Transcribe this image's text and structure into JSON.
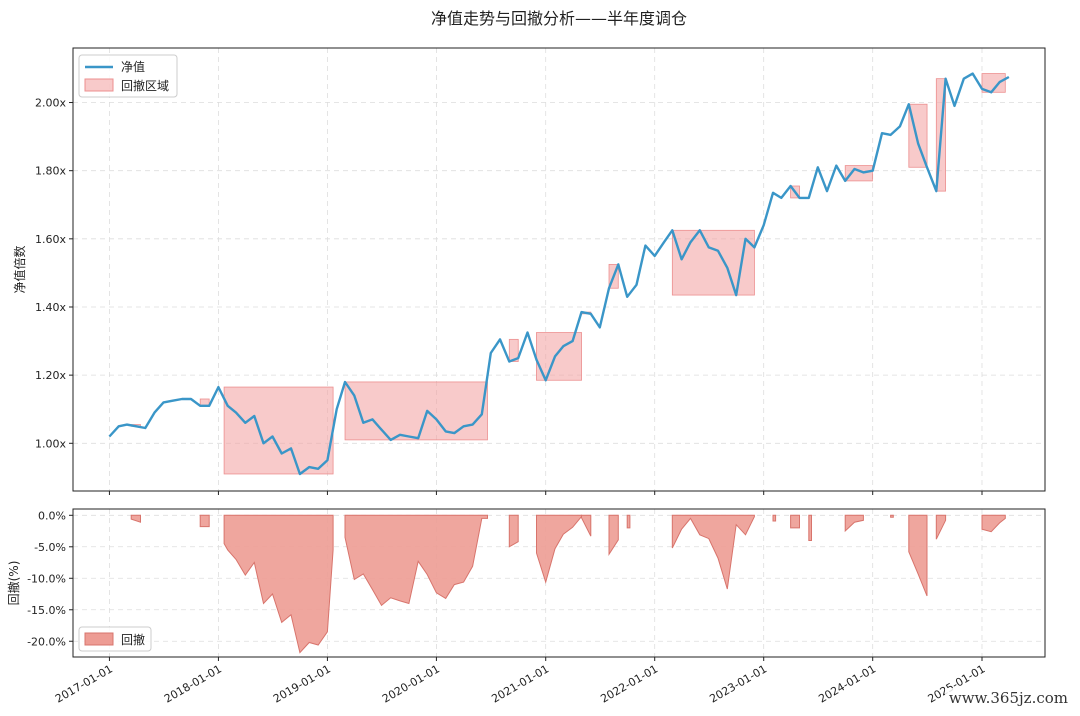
{
  "chart_data": [
    {
      "type": "line",
      "title": "净值走势与回撤分析——半年度调仓",
      "ylabel": "净值倍数",
      "ylim": [
        0.86,
        2.16
      ],
      "yticks": [
        1.0,
        1.2,
        1.4,
        1.6,
        1.8,
        2.0
      ],
      "ytick_labels": [
        "1.00x",
        "1.20x",
        "1.40x",
        "1.60x",
        "1.80x",
        "2.00x"
      ],
      "xlim": [
        "2016-09-01",
        "2025-07-31"
      ],
      "grid": true,
      "legend": {
        "position": "top-left",
        "entries": [
          "净值",
          "回撤区域"
        ]
      },
      "colors": {
        "nav": "#3a96c8",
        "drawdown_fill": "#f4a6a6"
      },
      "series": [
        {
          "name": "净值",
          "x": [
            "2017-01-01",
            "2017-02-01",
            "2017-03-01",
            "2017-04-01",
            "2017-05-01",
            "2017-06-01",
            "2017-07-01",
            "2017-08-01",
            "2017-09-01",
            "2017-10-01",
            "2017-11-01",
            "2017-12-01",
            "2018-01-01",
            "2018-02-01",
            "2018-03-01",
            "2018-04-01",
            "2018-05-01",
            "2018-06-01",
            "2018-07-01",
            "2018-08-01",
            "2018-09-01",
            "2018-10-01",
            "2018-11-01",
            "2018-12-01",
            "2019-01-01",
            "2019-02-01",
            "2019-03-01",
            "2019-04-01",
            "2019-05-01",
            "2019-06-01",
            "2019-07-01",
            "2019-08-01",
            "2019-09-01",
            "2019-10-01",
            "2019-11-01",
            "2019-12-01",
            "2020-01-01",
            "2020-02-01",
            "2020-03-01",
            "2020-04-01",
            "2020-05-01",
            "2020-06-01",
            "2020-07-01",
            "2020-08-01",
            "2020-09-01",
            "2020-10-01",
            "2020-11-01",
            "2020-12-01",
            "2021-01-01",
            "2021-02-01",
            "2021-03-01",
            "2021-04-01",
            "2021-05-01",
            "2021-06-01",
            "2021-07-01",
            "2021-08-01",
            "2021-09-01",
            "2021-10-01",
            "2021-11-01",
            "2021-12-01",
            "2022-01-01",
            "2022-02-01",
            "2022-03-01",
            "2022-04-01",
            "2022-05-01",
            "2022-06-01",
            "2022-07-01",
            "2022-08-01",
            "2022-09-01",
            "2022-10-01",
            "2022-11-01",
            "2022-12-01",
            "2023-01-01",
            "2023-02-01",
            "2023-03-01",
            "2023-04-01",
            "2023-05-01",
            "2023-06-01",
            "2023-07-01",
            "2023-08-01",
            "2023-09-01",
            "2023-10-01",
            "2023-11-01",
            "2023-12-01",
            "2024-01-01",
            "2024-02-01",
            "2024-03-01",
            "2024-04-01",
            "2024-05-01",
            "2024-06-01",
            "2024-07-01",
            "2024-08-01",
            "2024-09-01",
            "2024-10-01",
            "2024-11-01",
            "2024-12-01",
            "2025-01-01",
            "2025-02-01",
            "2025-03-01",
            "2025-04-01"
          ],
          "values": [
            1.02,
            1.05,
            1.055,
            1.05,
            1.045,
            1.09,
            1.12,
            1.125,
            1.13,
            1.13,
            1.11,
            1.11,
            1.165,
            1.11,
            1.09,
            1.06,
            1.08,
            1.0,
            1.02,
            0.97,
            0.985,
            0.91,
            0.93,
            0.925,
            0.95,
            1.1,
            1.18,
            1.14,
            1.06,
            1.07,
            1.04,
            1.01,
            1.025,
            1.02,
            1.015,
            1.095,
            1.07,
            1.035,
            1.03,
            1.05,
            1.055,
            1.085,
            1.265,
            1.305,
            1.24,
            1.25,
            1.325,
            1.245,
            1.185,
            1.255,
            1.285,
            1.3,
            1.385,
            1.38,
            1.34,
            1.455,
            1.525,
            1.43,
            1.465,
            1.58,
            1.55,
            1.59,
            1.625,
            1.54,
            1.59,
            1.625,
            1.575,
            1.565,
            1.515,
            1.435,
            1.6,
            1.575,
            1.64,
            1.735,
            1.72,
            1.755,
            1.72,
            1.72,
            1.81,
            1.74,
            1.815,
            1.77,
            1.805,
            1.795,
            1.8,
            1.91,
            1.905,
            1.93,
            1.995,
            1.88,
            1.81,
            1.74,
            2.07,
            1.99,
            2.07,
            2.085,
            2.04,
            2.03,
            2.06,
            2.075
          ]
        }
      ],
      "drawdown_regions": [
        {
          "start": "2017-03-15",
          "end": "2017-04-15",
          "top": 1.055
        },
        {
          "start": "2017-11-01",
          "end": "2017-12-01",
          "top": 1.13
        },
        {
          "start": "2018-01-20",
          "end": "2019-01-20",
          "top": 1.165
        },
        {
          "start": "2019-03-01",
          "end": "2020-06-20",
          "top": 1.18
        },
        {
          "start": "2020-09-01",
          "end": "2020-10-01",
          "top": 1.305
        },
        {
          "start": "2020-12-01",
          "end": "2021-05-01",
          "top": 1.325
        },
        {
          "start": "2021-05-01",
          "end": "2021-06-01",
          "top": 1.385
        },
        {
          "start": "2021-08-01",
          "end": "2021-09-01",
          "top": 1.525
        },
        {
          "start": "2022-03-01",
          "end": "2022-12-01",
          "top": 1.625
        },
        {
          "start": "2023-04-01",
          "end": "2023-05-01",
          "top": 1.755
        },
        {
          "start": "2023-10-01",
          "end": "2023-12-31",
          "top": 1.815
        },
        {
          "start": "2024-05-01",
          "end": "2024-07-01",
          "top": 1.995
        },
        {
          "start": "2024-08-01",
          "end": "2024-09-01",
          "top": 2.07
        },
        {
          "start": "2025-01-01",
          "end": "2025-03-20",
          "top": 2.085
        }
      ]
    },
    {
      "type": "area",
      "ylabel": "回撤(%)",
      "ylim": [
        -22.5,
        1.0
      ],
      "yticks": [
        0,
        -5,
        -10,
        -15,
        -20
      ],
      "ytick_labels": [
        "0.0%",
        "-5.0%",
        "-10.0%",
        "-15.0%",
        "-20.0%"
      ],
      "xlim": [
        "2016-09-01",
        "2025-07-31"
      ],
      "xtick_labels": [
        "2017-01-01",
        "2018-01-01",
        "2019-01-01",
        "2020-01-01",
        "2021-01-01",
        "2022-01-01",
        "2023-01-01",
        "2024-01-01",
        "2025-01-01"
      ],
      "grid": true,
      "legend": {
        "position": "bottom-left",
        "entries": [
          "回撤"
        ]
      },
      "colors": {
        "fill": "#ed9c94",
        "edge": "#d8746c"
      },
      "series": [
        {
          "name": "回撤",
          "segments": [
            {
              "x": [
                "2017-03-15",
                "2017-04-15"
              ],
              "values": [
                -0.6,
                -1.1
              ]
            },
            {
              "x": [
                "2017-11-01",
                "2017-12-01"
              ],
              "values": [
                -1.8,
                -1.8
              ]
            },
            {
              "x": [
                "2018-01-20",
                "2018-02-01",
                "2018-03-01",
                "2018-04-01",
                "2018-05-01",
                "2018-06-01",
                "2018-07-01",
                "2018-08-01",
                "2018-09-01",
                "2018-10-01",
                "2018-11-01",
                "2018-12-01",
                "2019-01-01",
                "2019-01-20"
              ],
              "values": [
                -4.5,
                -5.5,
                -7.0,
                -9.5,
                -7.5,
                -14.0,
                -12.5,
                -17.0,
                -15.8,
                -21.8,
                -20.2,
                -20.6,
                -18.5,
                -5.5
              ]
            },
            {
              "x": [
                "2019-03-01",
                "2019-04-01",
                "2019-05-01",
                "2019-06-01",
                "2019-07-01",
                "2019-08-01",
                "2019-09-01",
                "2019-10-01",
                "2019-11-01",
                "2019-12-01",
                "2020-01-01",
                "2020-02-01",
                "2020-03-01",
                "2020-04-01",
                "2020-05-01",
                "2020-06-01",
                "2020-06-20"
              ],
              "values": [
                -3.5,
                -10.2,
                -9.3,
                -11.8,
                -14.3,
                -13.1,
                -13.6,
                -14.0,
                -7.3,
                -9.4,
                -12.3,
                -13.2,
                -11.0,
                -10.6,
                -8.1,
                -0.5,
                -0.5
              ]
            },
            {
              "x": [
                "2020-09-01",
                "2020-10-01"
              ],
              "values": [
                -5.0,
                -4.2
              ]
            },
            {
              "x": [
                "2020-12-01",
                "2021-01-01",
                "2021-02-01",
                "2021-03-01",
                "2021-04-01",
                "2021-05-01"
              ],
              "values": [
                -6.0,
                -10.6,
                -5.3,
                -3.0,
                -1.9,
                -0.2
              ]
            },
            {
              "x": [
                "2021-05-01",
                "2021-06-01"
              ],
              "values": [
                -0.4,
                -3.3
              ]
            },
            {
              "x": [
                "2021-08-01",
                "2021-09-01"
              ],
              "values": [
                -6.2,
                -3.9
              ]
            },
            {
              "x": [
                "2021-10-01",
                "2021-10-10"
              ],
              "values": [
                -2.0,
                -2.0
              ]
            },
            {
              "x": [
                "2022-03-01",
                "2022-04-01",
                "2022-05-01",
                "2022-06-01",
                "2022-07-01",
                "2022-08-01",
                "2022-09-01",
                "2022-10-01",
                "2022-11-01",
                "2022-12-01"
              ],
              "values": [
                -5.2,
                -2.2,
                -0.5,
                -3.1,
                -3.7,
                -6.8,
                -11.7,
                -1.5,
                -3.1,
                -0.2
              ]
            },
            {
              "x": [
                "2023-02-01",
                "2023-02-10"
              ],
              "values": [
                -0.9,
                -0.9
              ]
            },
            {
              "x": [
                "2023-04-01",
                "2023-05-01"
              ],
              "values": [
                -2.0,
                -2.0
              ]
            },
            {
              "x": [
                "2023-06-01",
                "2023-06-10"
              ],
              "values": [
                -4.0,
                -4.0
              ]
            },
            {
              "x": [
                "2023-10-01",
                "2023-11-01",
                "2023-12-01"
              ],
              "values": [
                -2.5,
                -1.1,
                -0.8
              ]
            },
            {
              "x": [
                "2024-03-01",
                "2024-03-10"
              ],
              "values": [
                -0.3,
                -0.3
              ]
            },
            {
              "x": [
                "2024-05-01",
                "2024-06-01",
                "2024-07-01"
              ],
              "values": [
                -5.8,
                -9.3,
                -12.8
              ]
            },
            {
              "x": [
                "2024-08-01",
                "2024-09-01"
              ],
              "values": [
                -3.8,
                -0.8
              ]
            },
            {
              "x": [
                "2025-01-01",
                "2025-02-01",
                "2025-03-01",
                "2025-03-20"
              ],
              "values": [
                -2.2,
                -2.6,
                -1.2,
                -0.5
              ]
            }
          ]
        }
      ]
    }
  ],
  "watermark": "www.365jz.com"
}
